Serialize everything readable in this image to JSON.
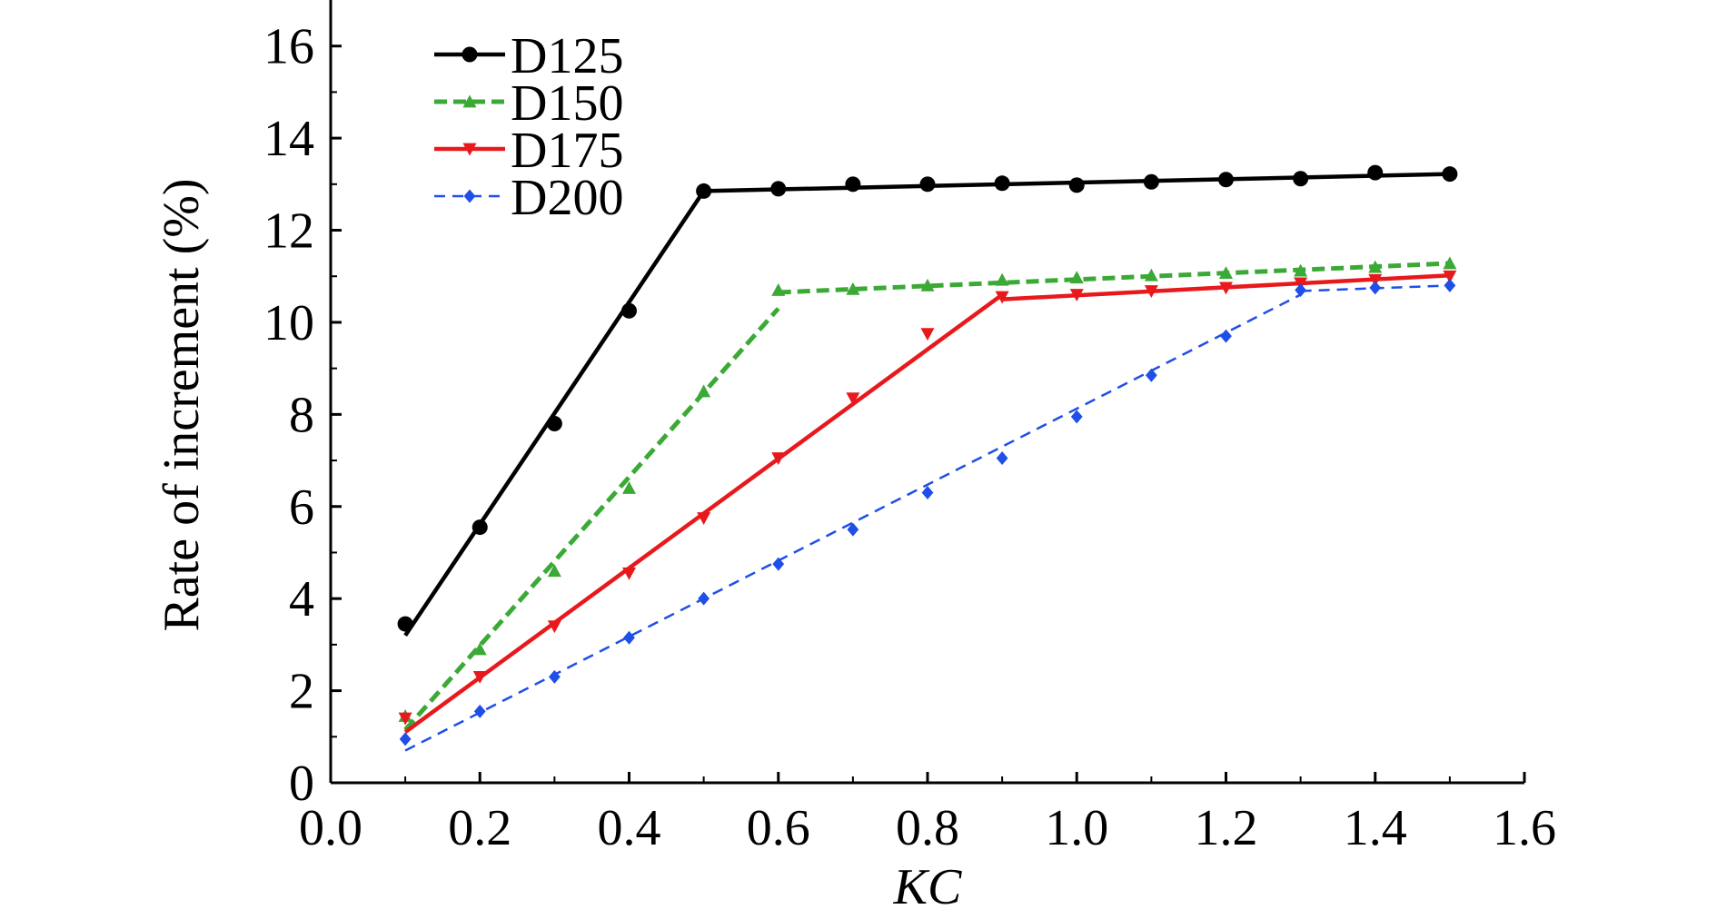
{
  "chart_data": {
    "type": "line",
    "xlabel": "KC",
    "ylabel": "Rate of increment (%)",
    "xlim": [
      0.0,
      1.6
    ],
    "ylim": [
      0,
      17
    ],
    "xticks": [
      "0.0",
      "0.2",
      "0.4",
      "0.6",
      "0.8",
      "1.0",
      "1.2",
      "1.4",
      "1.6"
    ],
    "yticks": [
      "0",
      "2",
      "4",
      "6",
      "8",
      "10",
      "12",
      "14",
      "16"
    ],
    "grid": false,
    "legend_position": "top-left",
    "series": [
      {
        "name": "D125",
        "color": "#000000",
        "marker": "circle",
        "line_style": "solid",
        "x": [
          0.1,
          0.2,
          0.3,
          0.4,
          0.5,
          0.6,
          0.7,
          0.8,
          0.9,
          1.0,
          1.1,
          1.2,
          1.3,
          1.4,
          1.5
        ],
        "values": [
          3.45,
          5.55,
          7.8,
          10.25,
          12.85,
          12.9,
          13.0,
          13.0,
          13.02,
          12.98,
          13.05,
          13.1,
          13.12,
          13.25,
          13.22
        ],
        "fit_segments": [
          {
            "x": [
              0.1,
              0.5
            ],
            "y": [
              3.2,
              12.85
            ]
          },
          {
            "x": [
              0.5,
              1.5
            ],
            "y": [
              12.85,
              13.22
            ]
          }
        ]
      },
      {
        "name": "D150",
        "color": "#3aa935",
        "marker": "triangle-up",
        "line_style": "dashed",
        "x": [
          0.1,
          0.2,
          0.3,
          0.4,
          0.5,
          0.6,
          0.7,
          0.8,
          0.9,
          1.0,
          1.1,
          1.2,
          1.3,
          1.4,
          1.5
        ],
        "values": [
          1.45,
          2.9,
          4.6,
          6.4,
          8.5,
          10.7,
          10.72,
          10.8,
          10.92,
          10.97,
          11.02,
          11.07,
          11.12,
          11.2,
          11.28
        ],
        "fit_segments": [
          {
            "x": [
              0.1,
              0.6
            ],
            "y": [
              1.15,
              10.3
            ]
          },
          {
            "x": [
              0.6,
              1.5
            ],
            "y": [
              10.65,
              11.28
            ]
          }
        ]
      },
      {
        "name": "D175",
        "color": "#e8191c",
        "marker": "triangle-down",
        "line_style": "solid",
        "x": [
          0.1,
          0.2,
          0.3,
          0.4,
          0.5,
          0.6,
          0.7,
          0.8,
          0.9,
          1.0,
          1.1,
          1.2,
          1.3,
          1.4,
          1.5
        ],
        "values": [
          1.4,
          2.3,
          3.4,
          4.55,
          5.75,
          7.05,
          8.35,
          9.75,
          10.55,
          10.6,
          10.68,
          10.75,
          10.85,
          10.92,
          11.0
        ],
        "fit_segments": [
          {
            "x": [
              0.1,
              0.9
            ],
            "y": [
              1.1,
              10.6
            ]
          },
          {
            "x": [
              0.9,
              1.5
            ],
            "y": [
              10.5,
              11.02
            ]
          }
        ]
      },
      {
        "name": "D200",
        "color": "#1f4ee8",
        "marker": "diamond",
        "line_style": "dashed",
        "x": [
          0.1,
          0.2,
          0.3,
          0.4,
          0.5,
          0.6,
          0.7,
          0.8,
          0.9,
          1.0,
          1.1,
          1.2,
          1.3,
          1.4,
          1.5
        ],
        "values": [
          0.95,
          1.55,
          2.3,
          3.15,
          4.0,
          4.75,
          5.5,
          6.3,
          7.05,
          7.95,
          8.85,
          9.7,
          10.7,
          10.75,
          10.8
        ],
        "fit_segments": [
          {
            "x": [
              0.1,
              1.3
            ],
            "y": [
              0.7,
              10.6
            ]
          },
          {
            "x": [
              1.3,
              1.5
            ],
            "y": [
              10.68,
              10.8
            ]
          }
        ]
      }
    ]
  }
}
